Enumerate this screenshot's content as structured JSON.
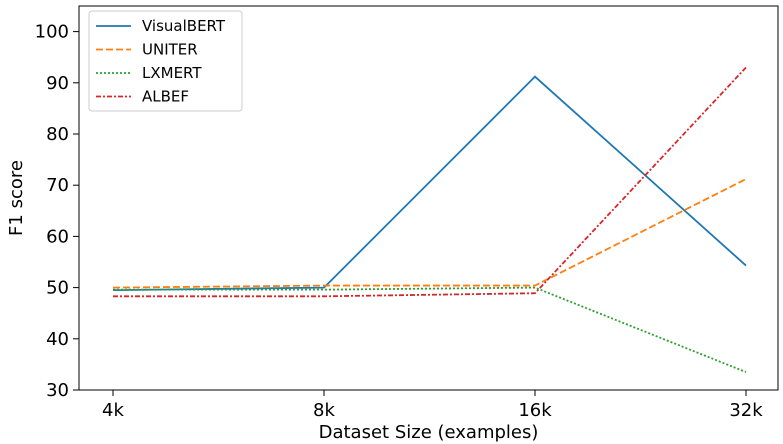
{
  "chart_data": {
    "type": "line",
    "xlabel": "Dataset Size (examples)",
    "ylabel": "F1 score",
    "categories": [
      "4k",
      "8k",
      "16k",
      "32k"
    ],
    "ylim": [
      30,
      105
    ],
    "yticks": [
      30,
      40,
      50,
      60,
      70,
      80,
      90,
      100
    ],
    "grid": false,
    "legend_position": "top-left",
    "series": [
      {
        "name": "VisualBERT",
        "values": [
          49.5,
          50.0,
          91.2,
          54.3
        ],
        "color": "#1f77b4",
        "style": "solid"
      },
      {
        "name": "UNITER",
        "values": [
          50.0,
          50.4,
          50.4,
          71.2
        ],
        "color": "#ff7f0e",
        "style": "dashed"
      },
      {
        "name": "LXMERT",
        "values": [
          49.6,
          49.6,
          50.0,
          33.5
        ],
        "color": "#2ca02c",
        "style": "dotted"
      },
      {
        "name": "ALBEF",
        "values": [
          48.3,
          48.3,
          48.9,
          93.0
        ],
        "color": "#d62728",
        "style": "dashdot"
      }
    ]
  }
}
